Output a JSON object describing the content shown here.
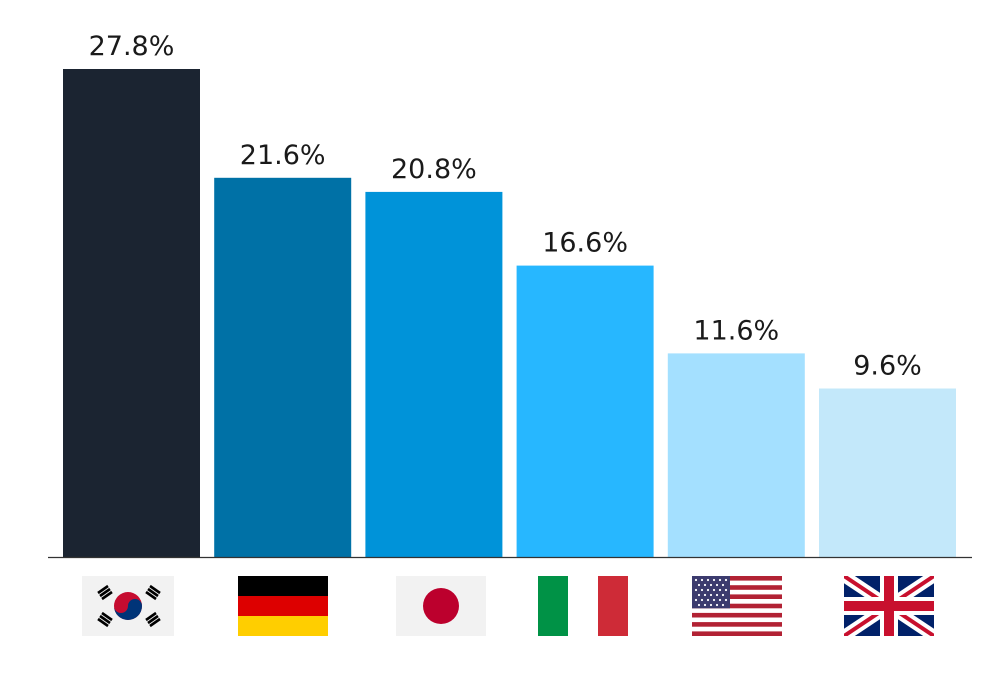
{
  "chart_data": {
    "type": "bar",
    "categories": [
      "South Korea",
      "Germany",
      "Japan",
      "Italy",
      "United States",
      "United Kingdom"
    ],
    "icons": [
      "south-korea-flag-icon",
      "germany-flag-icon",
      "japan-flag-icon",
      "italy-flag-icon",
      "us-flag-icon",
      "uk-flag-icon"
    ],
    "values": [
      27.8,
      21.6,
      20.8,
      16.6,
      11.6,
      9.6
    ],
    "labels": [
      "27.8%",
      "21.6%",
      "20.8%",
      "16.6%",
      "11.6%",
      "9.6%"
    ],
    "colors": [
      "#1b2431",
      "#0071a6",
      "#0093d9",
      "#27b7ff",
      "#a4e0ff",
      "#c3e8fa"
    ],
    "title": "",
    "xlabel": "",
    "ylabel": "",
    "ylim": [
      0,
      27.8
    ],
    "grid": false,
    "legend": "none"
  }
}
